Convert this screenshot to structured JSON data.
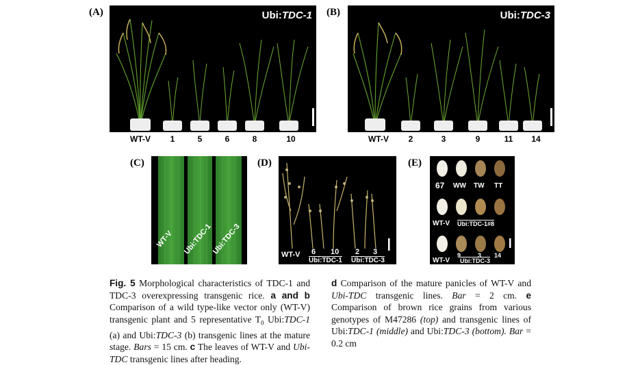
{
  "panels": {
    "A": {
      "label": "(A)",
      "title_prefix": "Ubi:",
      "title_gene": "TDC-1",
      "lines": [
        "WT-V",
        "1",
        "5",
        "6",
        "8",
        "10"
      ]
    },
    "B": {
      "label": "(B)",
      "title_prefix": "Ubi:",
      "title_gene": "TDC-3",
      "lines": [
        "WT-V",
        "2",
        "3",
        "9",
        "11",
        "14"
      ]
    },
    "C": {
      "label": "(C)",
      "leaves": [
        "WT-V",
        "Ubi:TDC-1",
        "Ubi:TDC-3"
      ]
    },
    "D": {
      "label": "(D)",
      "wt": "WT-V",
      "tdc1_lines": [
        "6",
        "10"
      ],
      "tdc1_group": "Ubi:TDC-1",
      "tdc3_lines": [
        "2",
        "3"
      ],
      "tdc3_group": "Ubi:TDC-3"
    },
    "E": {
      "label": "(E)",
      "row1": [
        "67",
        "WW",
        "TW",
        "TT"
      ],
      "row2_wt": "WT-V",
      "row2_group": "Ubi:TDC-1#8",
      "row3_wt": "WT-V",
      "row3_nums": [
        "9",
        "3",
        "14"
      ],
      "row3_group": "Ubi:TDC-3"
    }
  },
  "caption": {
    "fig": "Fig. 5",
    "left_text": "Morphological characteristics of TDC-1 and TDC-3 overexpressing transgenic rice.",
    "a": "a",
    "and": "and",
    "b": "b",
    "ab_text": "Comparison of a wild type-like vector only (WT-V) transgenic plant and 5 representative T",
    "ab_text2": "Ubi:",
    "gene1": "TDC-1",
    "ab_text3": "(a) and Ubi:",
    "gene3": "TDC-3",
    "ab_text4": "(b) transgenic lines at the mature stage.",
    "bars": "Bars",
    "bars_val": "= 15 cm.",
    "c": "c",
    "c_text": "The leaves of WT-V and",
    "ubi_tdc": "Ubi-TDC",
    "c_text2": "transgenic lines after heading.",
    "d": "d",
    "d_text": "Comparison of the mature panicles of WT-V and",
    "d_text2": "transgenic lines.",
    "bar": "Bar",
    "d_val": "= 2 cm.",
    "e": "e",
    "e_text": "Comparison of brown rice grains from various genotypes of M47286",
    "top": "(top)",
    "e_text2": "and transgenic lines of Ubi:",
    "middle": "(middle)",
    "e_text3": "and Ubi:",
    "bottom": "(bottom).",
    "e_val": "= 0.2 cm"
  }
}
